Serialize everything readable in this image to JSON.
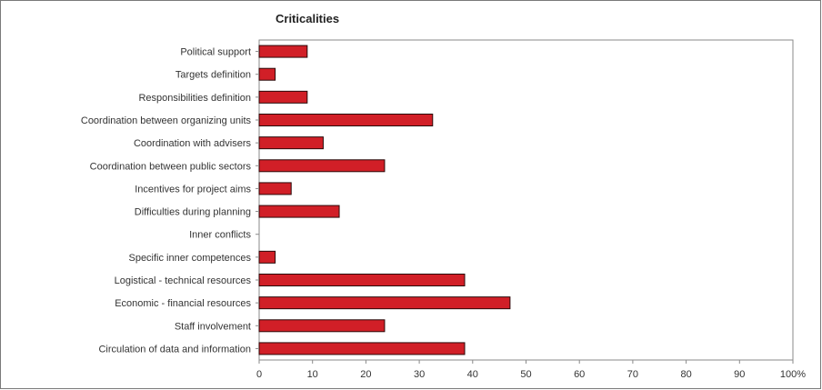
{
  "chart_data": {
    "type": "bar",
    "orientation": "horizontal",
    "title": "Criticalities",
    "xlabel": "",
    "ylabel": "",
    "categories": [
      "Political support",
      "Targets definition",
      "Responsibilities definition",
      "Coordination between organizing units",
      "Coordination with advisers",
      "Coordination between public sectors",
      "Incentives for project aims",
      "Difficulties during planning",
      "Inner conflicts",
      "Specific inner competences",
      "Logistical - technical resources",
      "Economic - financial resources",
      "Staff involvement",
      "Circulation of data and information"
    ],
    "values": [
      9,
      3,
      9,
      32.5,
      12,
      23.5,
      6,
      15,
      0,
      3,
      38.5,
      47,
      23.5,
      38.5
    ],
    "xlim": [
      0,
      100
    ],
    "xticks": [
      "0",
      "10",
      "20",
      "30",
      "40",
      "50",
      "60",
      "70",
      "80",
      "90",
      "100%"
    ],
    "grid": false,
    "legend": "none",
    "bar_color": "#d11f27",
    "bar_edge_color": "#2a0a0a"
  }
}
